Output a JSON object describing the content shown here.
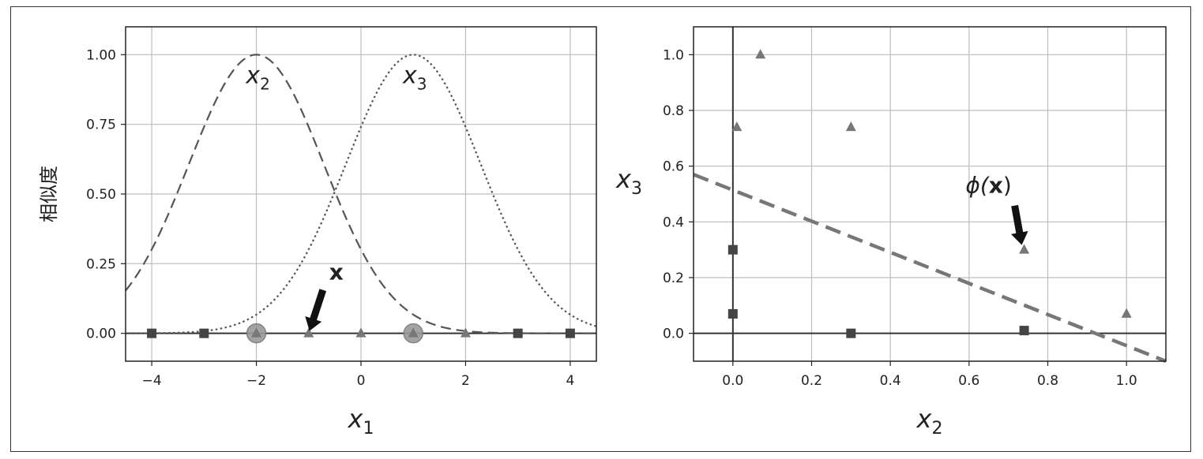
{
  "colors": {
    "frame": "#333333",
    "grid": "#bdbdbd",
    "axis": "#333333",
    "curve": "#555555",
    "marker": "#444444",
    "marker_light": "#777777",
    "highlight": "#9a9a9a",
    "boundary": "#777777"
  },
  "chart_data": [
    {
      "type": "line",
      "xlabel_base": "x",
      "xlabel_sub": "1",
      "ylabel": "相似度",
      "xlim": [
        -4.5,
        4.5
      ],
      "ylim": [
        -0.1,
        1.1
      ],
      "xticks": [
        -4,
        -2,
        0,
        2,
        4
      ],
      "xtick_labels": [
        "−4",
        "−2",
        "0",
        "2",
        "4"
      ],
      "yticks": [
        0,
        0.25,
        0.5,
        0.75,
        1.0
      ],
      "ytick_labels": [
        "0.00",
        "0.25",
        "0.50",
        "0.75",
        "1.00"
      ],
      "grid": true,
      "gamma": 0.3,
      "series": [
        {
          "label_base": "x",
          "label_sub": "2",
          "style": "dashed",
          "landmark": -2
        },
        {
          "label_base": "x",
          "label_sub": "3",
          "style": "dotted",
          "landmark": 1
        }
      ],
      "points": [
        {
          "x": -4,
          "marker": "square"
        },
        {
          "x": -3,
          "marker": "square"
        },
        {
          "x": -2,
          "marker": "triangle"
        },
        {
          "x": -1,
          "marker": "triangle"
        },
        {
          "x": 0,
          "marker": "triangle"
        },
        {
          "x": 1,
          "marker": "triangle"
        },
        {
          "x": 2,
          "marker": "triangle"
        },
        {
          "x": 3,
          "marker": "square"
        },
        {
          "x": 4,
          "marker": "square"
        }
      ],
      "highlight_x": [
        -2,
        1
      ],
      "annotation": {
        "text": "x",
        "target_x": -1,
        "target_y": 0
      }
    },
    {
      "type": "scatter",
      "xlabel_base": "x",
      "xlabel_sub": "2",
      "ylabel_base": "x",
      "ylabel_sub": "3",
      "xlim": [
        -0.1,
        1.1
      ],
      "ylim": [
        -0.1,
        1.1
      ],
      "xticks": [
        0,
        0.2,
        0.4,
        0.6,
        0.8,
        1.0
      ],
      "xtick_labels": [
        "0.0",
        "0.2",
        "0.4",
        "0.6",
        "0.8",
        "1.0"
      ],
      "yticks": [
        0,
        0.2,
        0.4,
        0.6,
        0.8,
        1.0
      ],
      "ytick_labels": [
        "0.0",
        "0.2",
        "0.4",
        "0.6",
        "0.8",
        "1.0"
      ],
      "grid": true,
      "points": [
        {
          "x": 0.0,
          "y": 0.3,
          "marker": "square"
        },
        {
          "x": 0.0,
          "y": 0.07,
          "marker": "square"
        },
        {
          "x": 0.3,
          "y": 0.0,
          "marker": "square"
        },
        {
          "x": 0.74,
          "y": 0.01,
          "marker": "square"
        },
        {
          "x": 0.07,
          "y": 1.0,
          "marker": "triangle"
        },
        {
          "x": 0.01,
          "y": 0.74,
          "marker": "triangle"
        },
        {
          "x": 0.3,
          "y": 0.74,
          "marker": "triangle"
        },
        {
          "x": 0.74,
          "y": 0.3,
          "marker": "triangle"
        },
        {
          "x": 1.0,
          "y": 0.07,
          "marker": "triangle"
        }
      ],
      "boundary": {
        "x": [
          -0.1,
          1.1
        ],
        "y": [
          0.57,
          -0.1
        ]
      },
      "annotation": {
        "text": "ϕ(x)",
        "prefix": "ϕ(",
        "bold": "x",
        "suffix": ")",
        "target_x": 0.74,
        "target_y": 0.3
      }
    }
  ]
}
